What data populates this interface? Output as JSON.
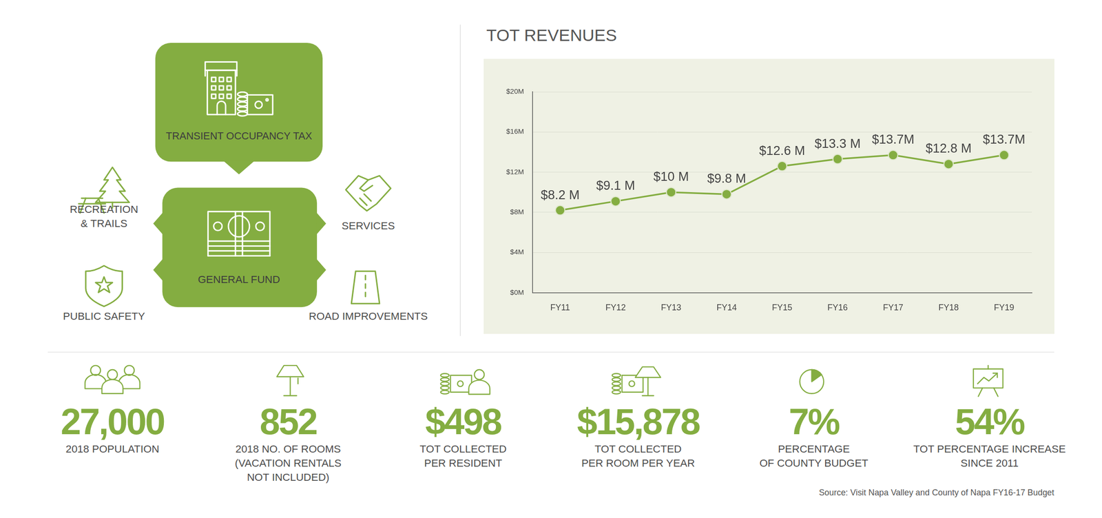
{
  "chart_data": {
    "type": "line",
    "title": "TOT REVENUES",
    "categories": [
      "FY11",
      "FY12",
      "FY13",
      "FY14",
      "FY15",
      "FY16",
      "FY17",
      "FY18",
      "FY19"
    ],
    "values": [
      8.2,
      9.1,
      10,
      9.8,
      12.6,
      13.3,
      13.7,
      12.8,
      13.7
    ],
    "value_labels": [
      "$8.2 M",
      "$9.1 M",
      "$10 M",
      "$9.8 M",
      "$12.6 M",
      "$13.3 M",
      "$13.7M",
      "$12.8 M",
      "$13.7M"
    ],
    "color": "#84ad41",
    "ylim": [
      0,
      20
    ],
    "yticks": [
      {
        "value": 0,
        "label": "$0M"
      },
      {
        "value": 4,
        "label": "$4M"
      },
      {
        "value": 8,
        "label": "$8M"
      },
      {
        "value": 12,
        "label": "$12M"
      },
      {
        "value": 16,
        "label": "$16M"
      },
      {
        "value": 20,
        "label": "$20M"
      }
    ],
    "grid": true,
    "data_labels": true,
    "marker": "circle",
    "line_style": "solid"
  },
  "diagram": {
    "source": "TRANSIENT OCCUPANCY TAX",
    "hub": "GENERAL FUND",
    "uses": [
      {
        "label": [
          "RECREATION",
          "& TRAILS"
        ]
      },
      {
        "label": [
          "SERVICES"
        ]
      },
      {
        "label": [
          "PUBLIC SAFETY"
        ]
      },
      {
        "label": [
          "ROAD IMPROVEMENTS"
        ]
      }
    ]
  },
  "stats": [
    {
      "value": "27,000",
      "label": [
        "2018 POPULATION"
      ]
    },
    {
      "value": "852",
      "label": [
        "2018 NO. OF ROOMS",
        "(VACATION RENTALS",
        "NOT INCLUDED)"
      ]
    },
    {
      "value": "$498",
      "label": [
        "TOT COLLECTED",
        "PER RESIDENT"
      ]
    },
    {
      "value": "$15,878",
      "label": [
        "TOT COLLECTED",
        "PER ROOM PER YEAR"
      ]
    },
    {
      "value": "7%",
      "label": [
        "PERCENTAGE",
        "OF COUNTY BUDGET"
      ]
    },
    {
      "value": "54%",
      "label": [
        "TOT PERCENTAGE INCREASE",
        "SINCE 2011"
      ]
    }
  ],
  "source": "Source: Visit Napa Valley and County of Napa FY16-17 Budget"
}
